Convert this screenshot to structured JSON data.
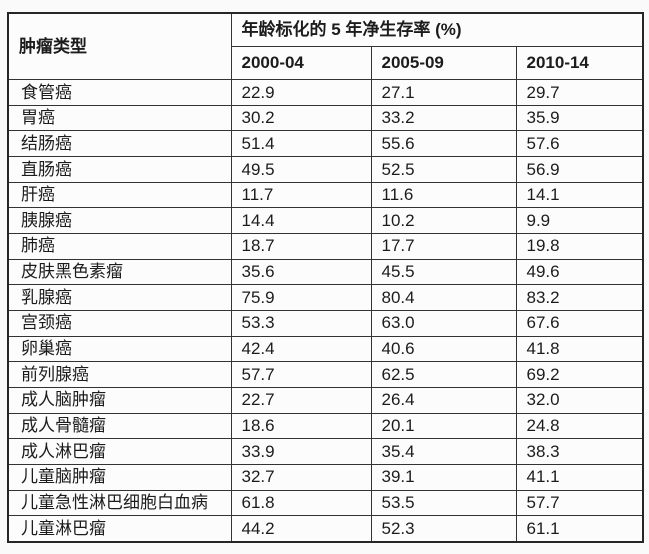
{
  "colors": {
    "background": "#fafafa",
    "table_background": "#fcfcfc",
    "grid_border": "#333333",
    "text": "#1c1c1c"
  },
  "table": {
    "corner_header": "肿瘤类型",
    "group_header": "年龄标化的 5 年净生存率 (%)",
    "period_headers": [
      "2000-04",
      "2005-09",
      "2010-14"
    ],
    "rows": [
      {
        "label": "食管癌",
        "values": [
          "22.9",
          "27.1",
          "29.7"
        ]
      },
      {
        "label": "胃癌",
        "values": [
          "30.2",
          "33.2",
          "35.9"
        ]
      },
      {
        "label": "结肠癌",
        "values": [
          "51.4",
          "55.6",
          "57.6"
        ]
      },
      {
        "label": "直肠癌",
        "values": [
          "49.5",
          "52.5",
          "56.9"
        ]
      },
      {
        "label": "肝癌",
        "values": [
          "11.7",
          "11.6",
          "14.1"
        ]
      },
      {
        "label": "胰腺癌",
        "values": [
          "14.4",
          "10.2",
          "9.9"
        ]
      },
      {
        "label": "肺癌",
        "values": [
          "18.7",
          "17.7",
          "19.8"
        ]
      },
      {
        "label": "皮肤黑色素瘤",
        "values": [
          "35.6",
          "45.5",
          "49.6"
        ]
      },
      {
        "label": "乳腺癌",
        "values": [
          "75.9",
          "80.4",
          "83.2"
        ]
      },
      {
        "label": "宫颈癌",
        "values": [
          "53.3",
          "63.0",
          "67.6"
        ]
      },
      {
        "label": "卵巢癌",
        "values": [
          "42.4",
          "40.6",
          "41.8"
        ]
      },
      {
        "label": "前列腺癌",
        "values": [
          "57.7",
          "62.5",
          "69.2"
        ]
      },
      {
        "label": "成人脑肿瘤",
        "values": [
          "22.7",
          "26.4",
          "32.0"
        ]
      },
      {
        "label": "成人骨髓瘤",
        "values": [
          "18.6",
          "20.1",
          "24.8"
        ]
      },
      {
        "label": "成人淋巴瘤",
        "values": [
          "33.9",
          "35.4",
          "38.3"
        ]
      },
      {
        "label": "儿童脑肿瘤",
        "values": [
          "32.7",
          "39.1",
          "41.1"
        ]
      },
      {
        "label": "儿童急性淋巴细胞白血病",
        "values": [
          "61.8",
          "53.5",
          "57.7"
        ]
      },
      {
        "label": "儿童淋巴瘤",
        "values": [
          "44.2",
          "52.3",
          "61.1"
        ]
      }
    ]
  },
  "chart_data": {
    "type": "table",
    "title": "年龄标化的 5 年净生存率 (%)",
    "row_header": "肿瘤类型",
    "categories": [
      "食管癌",
      "胃癌",
      "结肠癌",
      "直肠癌",
      "肝癌",
      "胰腺癌",
      "肺癌",
      "皮肤黑色素瘤",
      "乳腺癌",
      "宫颈癌",
      "卵巢癌",
      "前列腺癌",
      "成人脑肿瘤",
      "成人骨髓瘤",
      "成人淋巴瘤",
      "儿童脑肿瘤",
      "儿童急性淋巴细胞白血病",
      "儿童淋巴瘤"
    ],
    "series": [
      {
        "name": "2000-04",
        "values": [
          22.9,
          30.2,
          51.4,
          49.5,
          11.7,
          14.4,
          18.7,
          35.6,
          75.9,
          53.3,
          42.4,
          57.7,
          22.7,
          18.6,
          33.9,
          32.7,
          61.8,
          44.2
        ]
      },
      {
        "name": "2005-09",
        "values": [
          27.1,
          33.2,
          55.6,
          52.5,
          11.6,
          10.2,
          17.7,
          45.5,
          80.4,
          63.0,
          40.6,
          62.5,
          26.4,
          20.1,
          35.4,
          39.1,
          53.5,
          52.3
        ]
      },
      {
        "name": "2010-14",
        "values": [
          29.7,
          35.9,
          57.6,
          56.9,
          14.1,
          9.9,
          19.8,
          49.6,
          83.2,
          67.6,
          41.8,
          69.2,
          32.0,
          24.8,
          38.3,
          41.1,
          57.7,
          61.1
        ]
      }
    ],
    "unit": "%"
  }
}
